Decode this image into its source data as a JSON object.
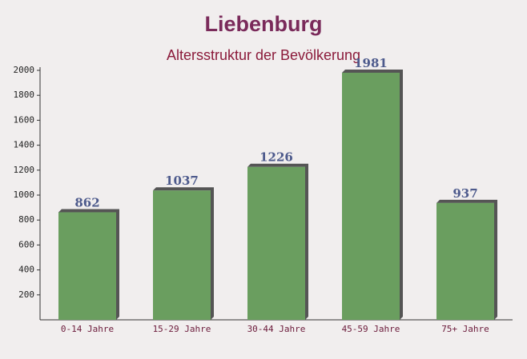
{
  "chart_data": {
    "type": "bar",
    "title": "Liebenburg",
    "subtitle": "Altersstruktur der Bevölkerung",
    "categories": [
      "0-14 Jahre",
      "15-29 Jahre",
      "30-44 Jahre",
      "45-59 Jahre",
      "75+ Jahre"
    ],
    "values": [
      862,
      1037,
      1226,
      1981,
      937
    ],
    "color": "#6a9e5f",
    "ylim": [
      0,
      2000
    ],
    "yticks": [
      200,
      400,
      600,
      800,
      1000,
      1200,
      1400,
      1600,
      1800,
      2000
    ],
    "grid": false
  }
}
